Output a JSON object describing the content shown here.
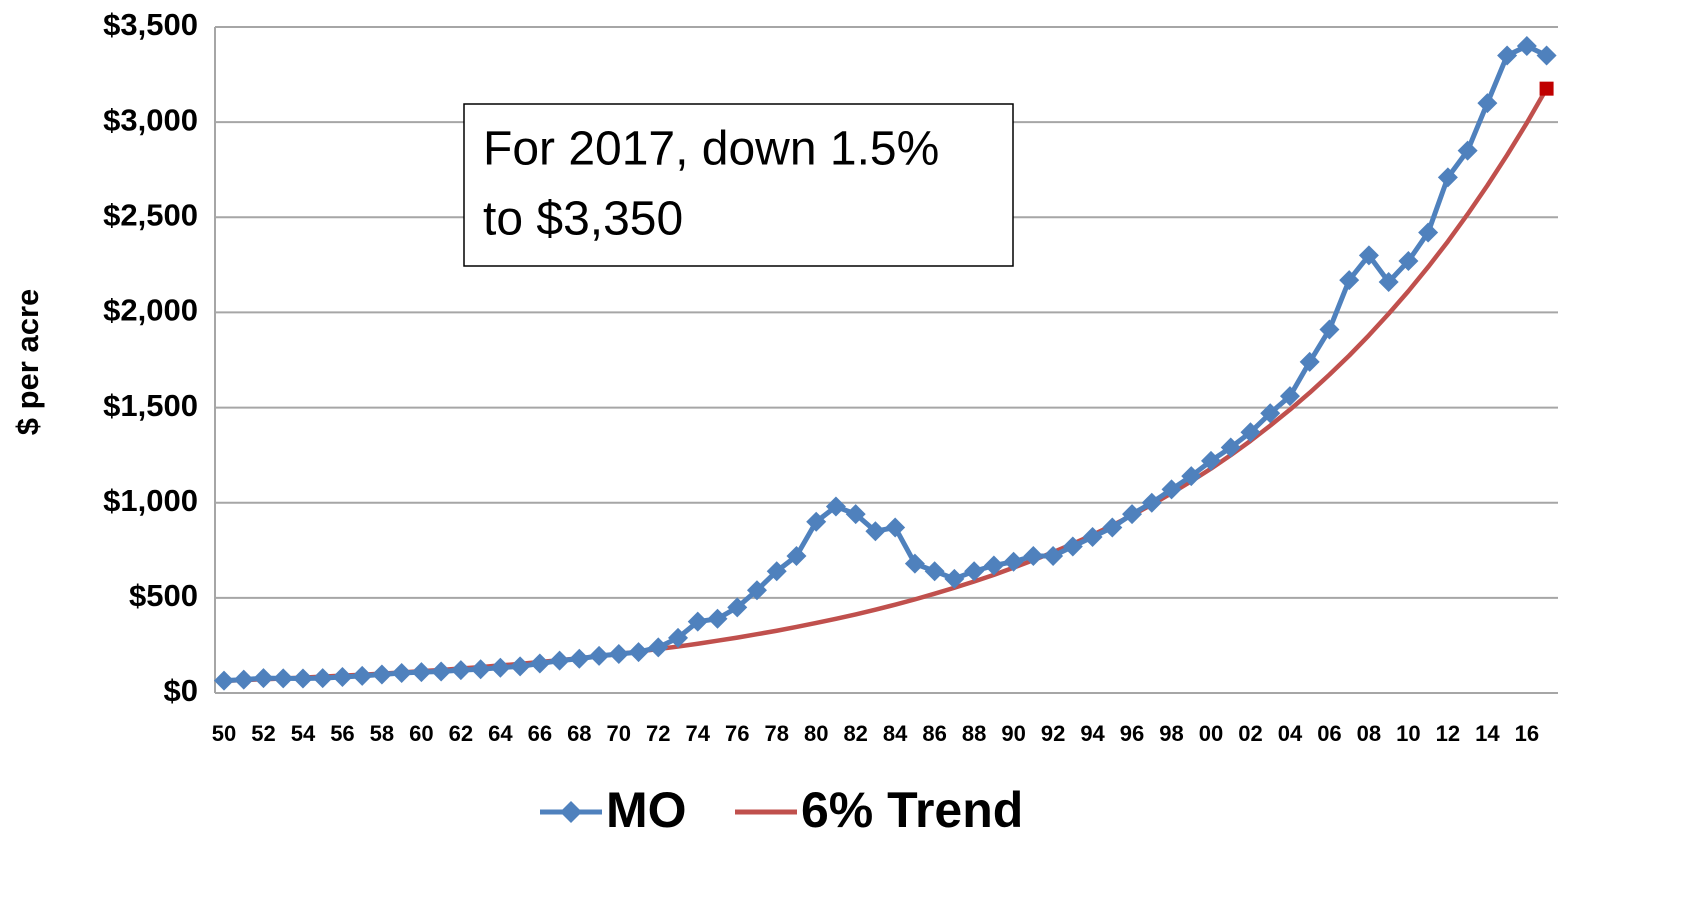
{
  "chart_data": {
    "type": "line",
    "ylabel": "$ per acre",
    "annotation": [
      "For 2017, down 1.5%",
      "to $3,350"
    ],
    "categories": [
      "50",
      null,
      "52",
      null,
      "54",
      null,
      "56",
      null,
      "58",
      null,
      "60",
      null,
      "62",
      null,
      "64",
      null,
      "66",
      null,
      "68",
      null,
      "70",
      null,
      "72",
      null,
      "74",
      null,
      "76",
      null,
      "78",
      null,
      "80",
      null,
      "82",
      null,
      "84",
      null,
      "86",
      null,
      "88",
      null,
      "90",
      null,
      "92",
      null,
      "94",
      null,
      "96",
      null,
      "98",
      null,
      "00",
      null,
      "02",
      null,
      "04",
      null,
      "06",
      null,
      "08",
      null,
      "10",
      null,
      "12",
      null,
      "14",
      null,
      "16",
      null
    ],
    "series": [
      {
        "name": "MO",
        "color": "#4f81bd",
        "marker": "diamond",
        "values": [
          65,
          70,
          78,
          77,
          76,
          78,
          84,
          90,
          97,
          105,
          110,
          113,
          120,
          125,
          133,
          140,
          155,
          170,
          180,
          195,
          205,
          215,
          240,
          290,
          375,
          390,
          450,
          540,
          640,
          720,
          900,
          980,
          940,
          850,
          870,
          680,
          640,
          600,
          640,
          670,
          690,
          720,
          720,
          770,
          820,
          870,
          940,
          1000,
          1070,
          1140,
          1220,
          1290,
          1370,
          1470,
          1560,
          1740,
          1910,
          2170,
          2300,
          2160,
          2270,
          2420,
          2710,
          2850,
          3100,
          3350,
          3400,
          3350
        ]
      },
      {
        "name": "6% Trend",
        "color": "#c0504d",
        "marker": "none",
        "values": [
          64,
          68,
          72,
          76,
          81,
          86,
          91,
          96,
          102,
          108,
          115,
          121,
          129,
          136,
          145,
          153,
          163,
          172,
          183,
          194,
          205,
          218,
          231,
          244,
          259,
          275,
          291,
          309,
          327,
          347,
          368,
          390,
          413,
          438,
          464,
          492,
          522,
          553,
          586,
          621,
          659,
          698,
          740,
          784,
          831,
          881,
          934,
          990,
          1050,
          1113,
          1179,
          1250,
          1325,
          1405,
          1489,
          1578,
          1673,
          1773,
          1880,
          1993,
          2112,
          2239,
          2373,
          2516,
          2667,
          2827,
          2996,
          3176
        ]
      }
    ],
    "ylim": [
      0,
      3500
    ],
    "yticks": [
      {
        "value": 0,
        "label": "$0"
      },
      {
        "value": 500,
        "label": "$500"
      },
      {
        "value": 1000,
        "label": "$1,000"
      },
      {
        "value": 1500,
        "label": "$1,500"
      },
      {
        "value": 2000,
        "label": "$2,000"
      },
      {
        "value": 2500,
        "label": "$2,500"
      },
      {
        "value": 3000,
        "label": "$3,000"
      },
      {
        "value": 3500,
        "label": "$3,500"
      }
    ],
    "grid": true,
    "legend": "bottom"
  }
}
